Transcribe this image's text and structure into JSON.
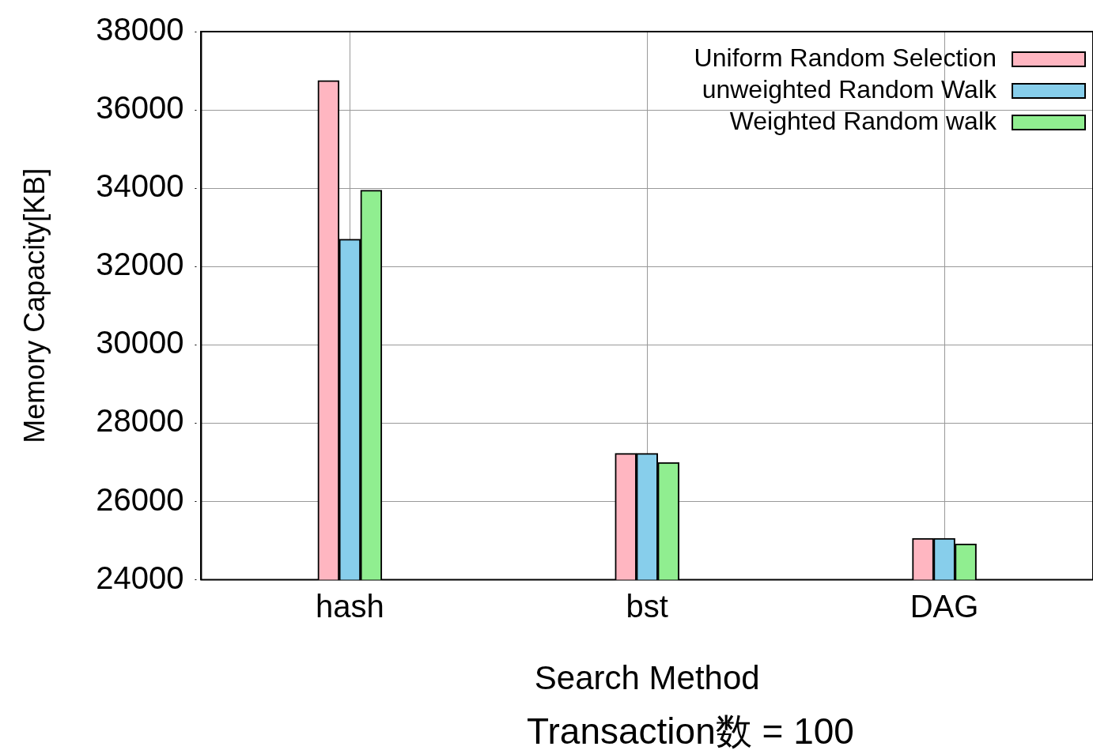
{
  "chart_data": {
    "type": "bar",
    "categories": [
      "hash",
      "bst",
      "DAG"
    ],
    "series": [
      {
        "name": "Uniform Random Selection",
        "color": "#ffb6c1",
        "values": [
          36750,
          27230,
          25060
        ]
      },
      {
        "name": "unweighted Random Walk",
        "color": "#87ceeb",
        "values": [
          32700,
          27230,
          25060
        ]
      },
      {
        "name": "Weighted Random walk",
        "color": "#90ee90",
        "values": [
          33950,
          27000,
          24920
        ]
      }
    ],
    "xlabel": "Search Method",
    "ylabel": "Memory Capacity[KB]",
    "ylim": [
      24000,
      38000
    ],
    "yticks": [
      24000,
      26000,
      28000,
      30000,
      32000,
      34000,
      36000,
      38000
    ],
    "grid": true,
    "legend": "top right",
    "annotations": [
      "Transaction数 = 100"
    ]
  }
}
